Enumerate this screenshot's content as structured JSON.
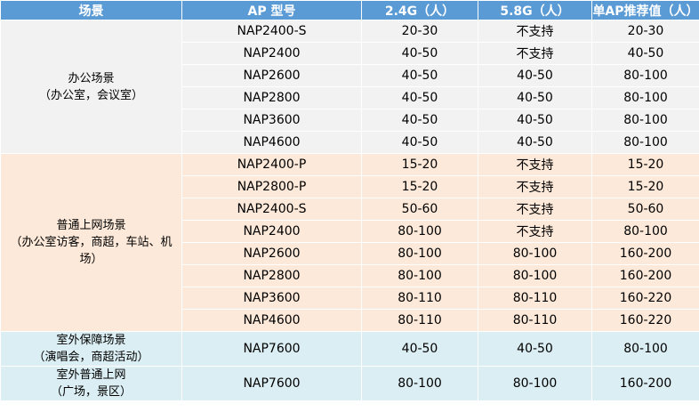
{
  "headers": [
    "场景",
    "AP 型号",
    "2.4G（人）",
    "5.8G（人）",
    "单AP推荐值（人）"
  ],
  "groups": [
    {
      "scene": [
        "办公场景",
        "（办公室，会议室）"
      ],
      "rows": [
        [
          "NAP2400-S",
          "20-30",
          "不支持",
          "20-30"
        ],
        [
          "NAP2400",
          "40-50",
          "不支持",
          "40-50"
        ],
        [
          "NAP2600",
          "40-50",
          "40-50",
          "80-100"
        ],
        [
          "NAP2800",
          "40-50",
          "40-50",
          "80-100"
        ],
        [
          "NAP3600",
          "40-50",
          "40-50",
          "80-100"
        ],
        [
          "NAP4600",
          "40-50",
          "40-50",
          "80-100"
        ]
      ]
    },
    {
      "scene": [
        "普通上网场景",
        "（办公室访客，商超，车站、机",
        "场）"
      ],
      "rows": [
        [
          "NAP2400-P",
          "15-20",
          "不支持",
          "15-20"
        ],
        [
          "NAP2800-P",
          "15-20",
          "不支持",
          "15-20"
        ],
        [
          "NAP2400-S",
          "50-60",
          "不支持",
          "50-60"
        ],
        [
          "NAP2400",
          "80-100",
          "不支持",
          "80-100"
        ],
        [
          "NAP2600",
          "80-100",
          "80-100",
          "160-200"
        ],
        [
          "NAP2800",
          "80-100",
          "80-100",
          "160-200"
        ],
        [
          "NAP3600",
          "80-110",
          "80-110",
          "160-220"
        ],
        [
          "NAP4600",
          "80-110",
          "80-110",
          "160-220"
        ]
      ]
    },
    {
      "scene": [
        "室外保障场景",
        "（演唱会，商超活动）"
      ],
      "rows": [
        [
          "NAP7600",
          "40-50",
          "40-50",
          "80-100"
        ]
      ]
    },
    {
      "scene": [
        "室外普通上网",
        "（广场，景区）"
      ],
      "rows": [
        [
          "NAP7600",
          "80-100",
          "80-100",
          "160-200"
        ]
      ]
    }
  ]
}
